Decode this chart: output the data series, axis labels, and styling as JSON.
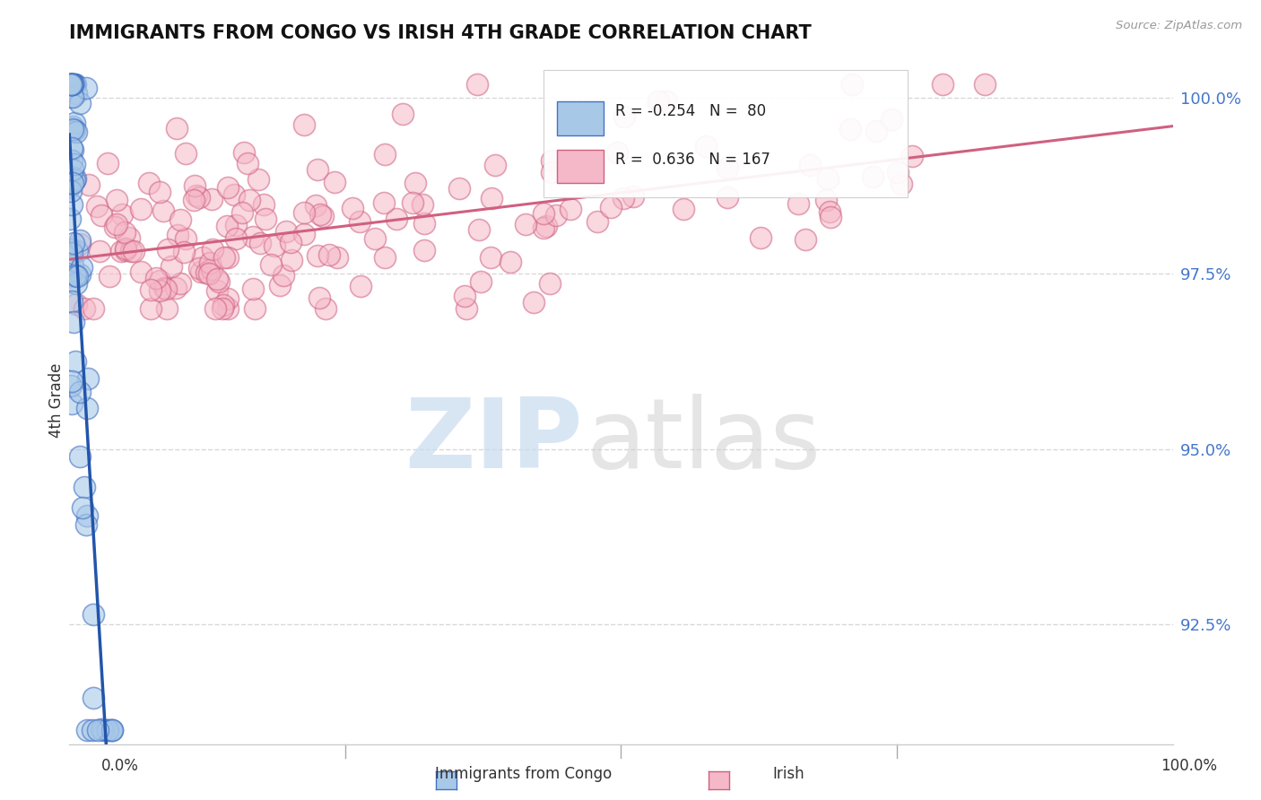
{
  "title": "IMMIGRANTS FROM CONGO VS IRISH 4TH GRADE CORRELATION CHART",
  "source": "Source: ZipAtlas.com",
  "xlabel_bottom_left": "0.0%",
  "xlabel_bottom_right": "100.0%",
  "legend_label_congo": "Immigrants from Congo",
  "legend_label_irish": "Irish",
  "ylabel": "4th Grade",
  "ytick_labels": [
    "92.5%",
    "95.0%",
    "97.5%",
    "100.0%"
  ],
  "ytick_values": [
    0.925,
    0.95,
    0.975,
    1.0
  ],
  "xlim": [
    0.0,
    1.0
  ],
  "ylim": [
    0.908,
    1.006
  ],
  "congo_fill": "#a8c8e8",
  "congo_edge": "#4472c4",
  "irish_fill": "#f5b8c8",
  "irish_edge": "#d06080",
  "congo_trend_solid": "#2255aa",
  "congo_trend_dash": "#5588cc",
  "irish_trend": "#d06080",
  "congo_R": -0.254,
  "congo_N": 80,
  "irish_R": 0.636,
  "irish_N": 167,
  "grid_color": "#d8d8d8",
  "bg_color": "#ffffff",
  "watermark_zip_color": "#c8dcf0",
  "watermark_atlas_color": "#d0d0d0"
}
